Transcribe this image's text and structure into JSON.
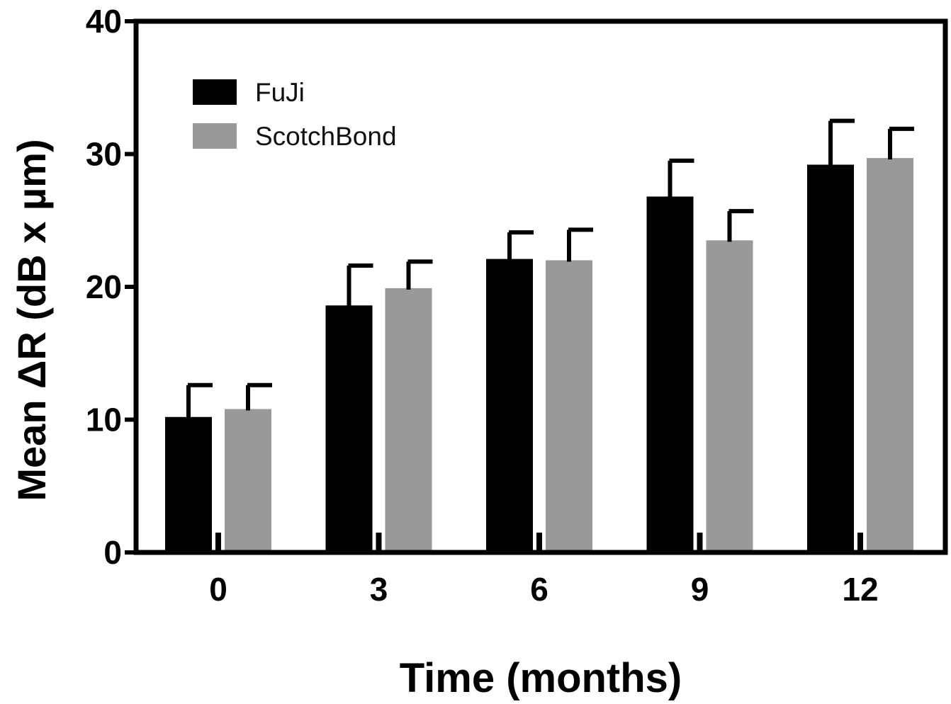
{
  "chart_data": {
    "type": "bar",
    "xlabel": "Time (months)",
    "ylabel": "Mean ΔR (dB x µm)",
    "categories": [
      "0",
      "3",
      "6",
      "9",
      "12"
    ],
    "ylim": [
      0,
      40
    ],
    "yticks": [
      "0",
      "10",
      "20",
      "30",
      "40"
    ],
    "grid": false,
    "legend_position": "top-left",
    "series": [
      {
        "name": "FuJi",
        "color": "#000000",
        "values": [
          10.2,
          18.6,
          22.1,
          26.8,
          29.2
        ],
        "errors": [
          2.4,
          3.0,
          2.0,
          2.7,
          3.3
        ]
      },
      {
        "name": "ScotchBond",
        "color": "#999999",
        "values": [
          10.8,
          19.9,
          22.0,
          23.5,
          29.7
        ],
        "errors": [
          1.8,
          2.0,
          2.3,
          2.2,
          2.2
        ]
      }
    ]
  }
}
